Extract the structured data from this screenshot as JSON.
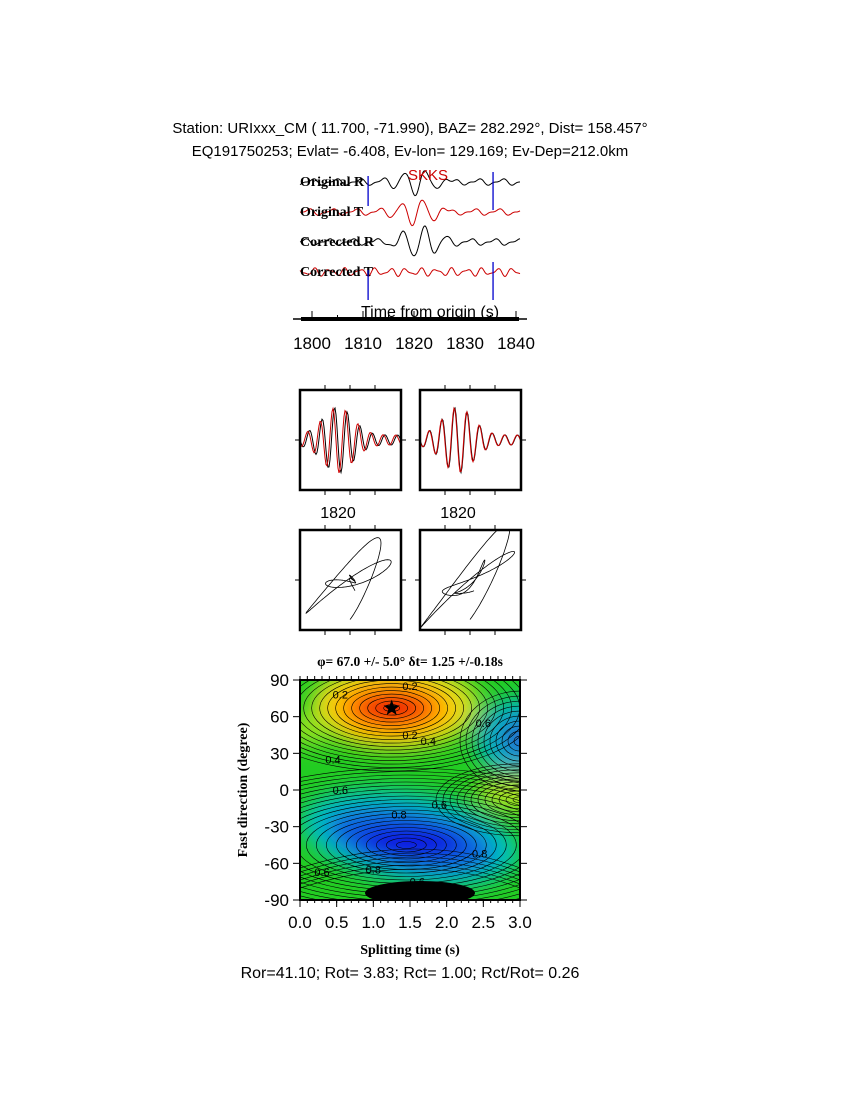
{
  "header": {
    "line1": "Station: URIxxx_CM (  11.700,  -71.990), BAZ=  282.292°, Dist=  158.457°",
    "line2": "EQ191750253; Evlat=  -6.408, Ev-lon= 129.169; Ev-Dep=212.0km"
  },
  "waveforms": {
    "phase_label": "SKKS",
    "traces": [
      {
        "label": "Original R",
        "color": "#000000"
      },
      {
        "label": "Original T",
        "color": "#cc0000"
      },
      {
        "label": "Corrected R",
        "color": "#000000"
      },
      {
        "label": "Corrected T",
        "color": "#cc0000"
      }
    ],
    "window_start": 1811,
    "window_end": 1835.5,
    "window_color": "#0000cc",
    "xlabel": "Time from origin (s)",
    "xticks": [
      "1800",
      "1810",
      "1820",
      "1830",
      "1840"
    ],
    "xlim": [
      1798,
      1841
    ]
  },
  "particle_motion": {
    "tick_labels": [
      "1820",
      "1820"
    ]
  },
  "chart_data": {
    "type": "heatmap",
    "title": "φ= 67.0 +/- 5.0° δt= 1.25 +/-0.18s",
    "xlabel": "Splitting time (s)",
    "ylabel": "Fast direction (degree)",
    "xlim": [
      0,
      3
    ],
    "ylim": [
      -90,
      90
    ],
    "xticks": [
      "0.0",
      "0.5",
      "1.0",
      "1.5",
      "2.0",
      "2.5",
      "3.0"
    ],
    "yticks": [
      "90",
      "60",
      "30",
      "0",
      "-30",
      "-60",
      "-90"
    ],
    "best_fit": {
      "dt": 1.25,
      "phi": 67.0,
      "marker": "star"
    },
    "contour_labels": [
      {
        "text": "0.2",
        "x": 0.55,
        "y": 78
      },
      {
        "text": "0.2",
        "x": 1.5,
        "y": 85
      },
      {
        "text": "0.2",
        "x": 1.5,
        "y": 45
      },
      {
        "text": "0.4",
        "x": 1.75,
        "y": 40
      },
      {
        "text": "0.6",
        "x": 2.5,
        "y": 55
      },
      {
        "text": "0.4",
        "x": 0.45,
        "y": 25
      },
      {
        "text": "0.6",
        "x": 0.55,
        "y": 0
      },
      {
        "text": "0.6",
        "x": 1.9,
        "y": -12
      },
      {
        "text": "0.8",
        "x": 1.35,
        "y": -20
      },
      {
        "text": "0.8",
        "x": 2.45,
        "y": -52
      },
      {
        "text": "0.8",
        "x": 1.0,
        "y": -65
      },
      {
        "text": "0.6",
        "x": 0.3,
        "y": -67
      },
      {
        "text": "0.6",
        "x": 1.6,
        "y": -75
      },
      {
        "text": "0.4",
        "x": 1.75,
        "y": -82
      }
    ]
  },
  "results": "Ror=41.10; Rot= 3.83; Rct= 1.00; Rct/Rot= 0.26"
}
